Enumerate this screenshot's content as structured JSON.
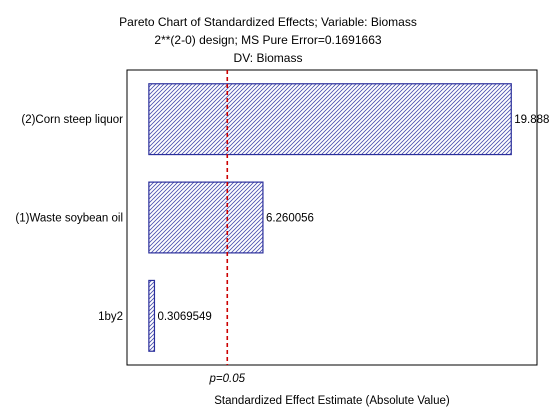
{
  "chart_data": {
    "type": "bar",
    "orientation": "horizontal",
    "title": "Pareto Chart of Standardized Effects; Variable: Biomass",
    "subtitle": "2**(2-0) design; MS Pure Error=0.1691663",
    "subtitle2": "DV: Biomass",
    "xlabel": "Standardized Effect Estimate (Absolute Value)",
    "ylabel": "",
    "categories": [
      "(2)Corn steep liquor",
      "(1)Waste soybean oil",
      "1by2"
    ],
    "values": [
      19.888,
      6.260056,
      0.3069549
    ],
    "value_labels": [
      "19.888",
      "6.260056",
      "0.3069549"
    ],
    "xlim": [
      -1.2,
      21.3
    ],
    "reference_line": {
      "value": 4.303,
      "label": "p=0.05",
      "color": "#cc0000"
    },
    "bar_color": "#2b2f9c",
    "grid": false
  }
}
